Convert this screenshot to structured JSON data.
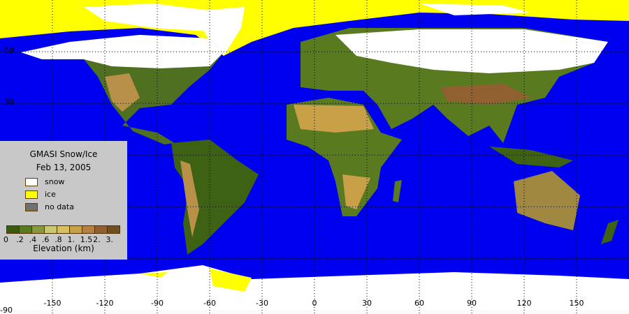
{
  "legend": {
    "title": "GMASI Snow/Ice",
    "date": "Feb 13, 2005",
    "items": [
      {
        "label": "snow",
        "color": "#ffffff"
      },
      {
        "label": "ice",
        "color": "#ffff00"
      },
      {
        "label": "no data",
        "color": "#707070"
      }
    ],
    "colorbar": {
      "colors": [
        "#3a5a10",
        "#5a7a20",
        "#88983a",
        "#c8c870",
        "#d8c060",
        "#c8a048",
        "#b88040",
        "#906030",
        "#705020"
      ],
      "ticks": [
        "0",
        ".2",
        ".4",
        ".6",
        ".8",
        "1.",
        "1.5",
        "2.",
        "3."
      ],
      "label": "Elevation (km)"
    }
  },
  "axes": {
    "lon_labels": [
      "-150",
      "-120",
      "-90",
      "-60",
      "-30",
      "0",
      "30",
      "60",
      "90",
      "120",
      "150"
    ],
    "lat_labels": [
      "60",
      "30",
      "-90"
    ]
  },
  "colors": {
    "ocean": "#0000f0",
    "snow": "#ffffff",
    "ice": "#ffff00",
    "land_low": "#4a6a18",
    "land_high": "#b89048"
  }
}
